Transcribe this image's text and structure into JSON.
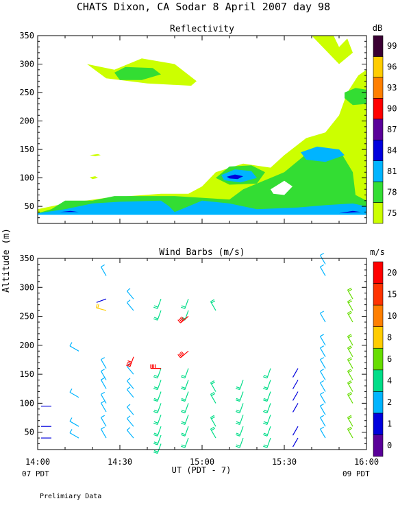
{
  "title": "CHATS Dixon, CA  Sodar    8 April 2007   day  98",
  "footer_note": "Prelimiary Data",
  "shared": {
    "ylabel": "Altitude (m)",
    "xlabel": "UT  (PDT - 7)",
    "x_ticks": [
      "14:00",
      "14:30",
      "15:00",
      "15:30",
      "16:00"
    ],
    "x_sub_left": "07 PDT",
    "x_sub_right": "09 PDT",
    "y_ticks": [
      "50",
      "100",
      "150",
      "200",
      "250",
      "300",
      "350"
    ]
  },
  "chart_data": [
    {
      "type": "heatmap",
      "title": "Reflectivity",
      "xlim": [
        "14:00",
        "16:00"
      ],
      "ylim": [
        20,
        350
      ],
      "colorbar_unit": "dB",
      "colorbar_ticks": [
        "75",
        "78",
        "81",
        "84",
        "87",
        "90",
        "93",
        "96",
        "99"
      ],
      "levels": [
        {
          "from": 75,
          "color": "#ccff00"
        },
        {
          "from": 78,
          "color": "#33dd33"
        },
        {
          "from": 81,
          "color": "#00b4ff"
        },
        {
          "from": 84,
          "color": "#0000dd"
        },
        {
          "from": 87,
          "color": "#5a0099"
        },
        {
          "from": 90,
          "color": "#ff0000"
        },
        {
          "from": 93,
          "color": "#ff7f00"
        },
        {
          "from": 96,
          "color": "#ffcc00"
        },
        {
          "from": 99,
          "color": "#3a0033"
        }
      ],
      "regions": [
        {
          "level": 75,
          "points": [
            [
              "14:00",
              45
            ],
            [
              "14:10",
              55
            ],
            [
              "14:25",
              65
            ],
            [
              "14:45",
              72
            ],
            [
              "14:55",
              72
            ],
            [
              "15:00",
              85
            ],
            [
              "15:05",
              110
            ],
            [
              "15:15",
              125
            ],
            [
              "15:25",
              118
            ],
            [
              "15:30",
              140
            ],
            [
              "15:38",
              170
            ],
            [
              "15:45",
              180
            ],
            [
              "15:50",
              210
            ],
            [
              "15:53",
              250
            ],
            [
              "15:57",
              280
            ],
            [
              "16:00",
              290
            ],
            [
              "16:00",
              35
            ],
            [
              "14:00",
              35
            ]
          ]
        },
        {
          "level": 75,
          "points": [
            [
              "14:18",
              300
            ],
            [
              "14:28",
              290
            ],
            [
              "14:38",
              310
            ],
            [
              "14:50",
              300
            ],
            [
              "14:58",
              270
            ],
            [
              "14:56",
              262
            ],
            [
              "14:40",
              266
            ],
            [
              "14:25",
              275
            ]
          ]
        },
        {
          "level": 75,
          "points": [
            [
              "15:40",
              350
            ],
            [
              "15:48",
              350
            ],
            [
              "15:50",
              330
            ],
            [
              "15:53",
              345
            ],
            [
              "15:55",
              320
            ],
            [
              "15:50",
              300
            ]
          ]
        },
        {
          "level": 75,
          "points": [
            [
              "14:19",
              140
            ],
            [
              "14:22",
              142
            ],
            [
              "14:23",
              140
            ],
            [
              "14:21",
              138
            ]
          ]
        },
        {
          "level": 75,
          "points": [
            [
              "14:19",
              101
            ],
            [
              "14:21",
              103
            ],
            [
              "14:22",
              100
            ],
            [
              "14:20",
              98
            ]
          ]
        },
        {
          "level": 78,
          "points": [
            [
              "14:00",
              38
            ],
            [
              "14:05",
              45
            ],
            [
              "14:10",
              60
            ],
            [
              "14:20",
              60
            ],
            [
              "14:28",
              68
            ],
            [
              "14:50",
              68
            ],
            [
              "15:00",
              65
            ],
            [
              "15:10",
              62
            ],
            [
              "15:15",
              80
            ],
            [
              "15:25",
              100
            ],
            [
              "15:30",
              110
            ],
            [
              "15:35",
              130
            ],
            [
              "15:40",
              150
            ],
            [
              "15:50",
              150
            ],
            [
              "15:55",
              110
            ],
            [
              "15:56",
              70
            ],
            [
              "16:00",
              60
            ],
            [
              "16:00",
              35
            ],
            [
              "14:00",
              35
            ]
          ]
        },
        {
          "level": 78,
          "points": [
            [
              "14:28",
              285
            ],
            [
              "14:32",
              295
            ],
            [
              "14:42",
              293
            ],
            [
              "14:45",
              282
            ],
            [
              "14:38",
              272
            ],
            [
              "14:30",
              272
            ]
          ]
        },
        {
          "level": 78,
          "points": [
            [
              "15:52",
              250
            ],
            [
              "15:56",
              258
            ],
            [
              "16:00",
              255
            ],
            [
              "16:00",
              230
            ],
            [
              "15:55",
              228
            ],
            [
              "15:52",
              240
            ]
          ]
        },
        {
          "level": 78,
          "points": [
            [
              "15:05",
              100
            ],
            [
              "15:10",
              120
            ],
            [
              "15:18",
              122
            ],
            [
              "15:23",
              110
            ],
            [
              "15:20",
              90
            ],
            [
              "15:10",
              88
            ]
          ]
        },
        {
          "level": 81,
          "points": [
            [
              "14:00",
              38
            ],
            [
              "14:10",
              45
            ],
            [
              "14:20",
              55
            ],
            [
              "14:30",
              58
            ],
            [
              "14:45",
              60
            ],
            [
              "14:48",
              50
            ],
            [
              "14:50",
              40
            ],
            [
              "14:55",
              50
            ],
            [
              "15:00",
              60
            ],
            [
              "15:10",
              55
            ],
            [
              "15:20",
              45
            ],
            [
              "15:35",
              48
            ],
            [
              "15:45",
              52
            ],
            [
              "15:55",
              55
            ],
            [
              "16:00",
              50
            ],
            [
              "16:00",
              35
            ],
            [
              "14:00",
              35
            ]
          ]
        },
        {
          "level": 81,
          "points": [
            [
              "15:07",
              105
            ],
            [
              "15:12",
              115
            ],
            [
              "15:18",
              112
            ],
            [
              "15:20",
              100
            ],
            [
              "15:14",
              92
            ],
            [
              "15:08",
              96
            ]
          ]
        },
        {
          "level": 81,
          "points": [
            [
              "15:36",
              145
            ],
            [
              "15:42",
              155
            ],
            [
              "15:50",
              150
            ],
            [
              "15:52",
              140
            ],
            [
              "15:45",
              128
            ],
            [
              "15:38",
              132
            ]
          ]
        },
        {
          "level": 84,
          "points": [
            [
              "15:09",
              102
            ],
            [
              "15:12",
              106
            ],
            [
              "15:15",
              103
            ],
            [
              "15:13",
              98
            ],
            [
              "15:10",
              99
            ]
          ]
        },
        {
          "level": 84,
          "points": [
            [
              "14:08",
              40
            ],
            [
              "14:12",
              42
            ],
            [
              "14:15",
              40
            ]
          ]
        },
        {
          "level": 84,
          "points": [
            [
              "15:50",
              38
            ],
            [
              "15:55",
              42
            ],
            [
              "15:58",
              40
            ]
          ]
        }
      ],
      "gaps": [
        {
          "points": [
            [
              "15:25",
              80
            ],
            [
              "15:30",
              95
            ],
            [
              "15:33",
              85
            ],
            [
              "15:30",
              70
            ],
            [
              "15:26",
              72
            ]
          ]
        }
      ]
    },
    {
      "type": "scatter",
      "title": "Wind Barbs (m/s)",
      "xlim": [
        "14:00",
        "16:00"
      ],
      "ylim": [
        20,
        350
      ],
      "colorbar_unit": "m/s",
      "colorbar_ticks": [
        "0",
        "1",
        "2",
        "4",
        "6",
        "8",
        "10",
        "15",
        "20"
      ],
      "speed_colors": [
        {
          "from": 0,
          "color": "#5a0099"
        },
        {
          "from": 1,
          "color": "#0000dd"
        },
        {
          "from": 2,
          "color": "#00b4ff"
        },
        {
          "from": 4,
          "color": "#00dd88"
        },
        {
          "from": 6,
          "color": "#66dd00"
        },
        {
          "from": 8,
          "color": "#ffcc00"
        },
        {
          "from": 10,
          "color": "#ff7f00"
        },
        {
          "from": 15,
          "color": "#ff3300"
        },
        {
          "from": 20,
          "color": "#ff0000"
        }
      ],
      "series": [
        {
          "time": "14:05",
          "heights": [
            40,
            60,
            95
          ],
          "speed": 1.5,
          "dir": 270
        },
        {
          "time": "14:15",
          "heights": [
            40,
            60,
            110,
            190
          ],
          "speed": 2.5,
          "dir": 300
        },
        {
          "time": "14:25",
          "heights": [
            40,
            60,
            85,
            100,
            125,
            140,
            160,
            320
          ],
          "speed": 3,
          "dir": 330
        },
        {
          "time": "14:25",
          "heights": [
            260
          ],
          "speed": 8.5,
          "dir": 285
        },
        {
          "time": "14:25",
          "heights": [
            280
          ],
          "speed": 1.5,
          "dir": 250
        },
        {
          "time": "14:35",
          "heights": [
            40,
            60,
            80,
            110,
            125,
            150,
            260,
            280
          ],
          "speed": 3,
          "dir": 320
        },
        {
          "time": "14:35",
          "heights": [
            180
          ],
          "speed": 21,
          "dir": 200
        },
        {
          "time": "14:45",
          "heights": [
            30,
            45,
            60,
            80,
            100,
            120,
            140,
            160,
            260,
            280
          ],
          "speed": 5,
          "dir": 200
        },
        {
          "time": "14:45",
          "heights": [
            160
          ],
          "speed": 21,
          "dir": 270
        },
        {
          "time": "14:55",
          "heights": [
            40,
            60,
            80,
            100,
            120,
            140,
            160,
            260,
            280
          ],
          "speed": 5.5,
          "dir": 200
        },
        {
          "time": "14:55",
          "heights": [
            250,
            190
          ],
          "speed": 21,
          "dir": 230
        },
        {
          "time": "15:05",
          "heights": [
            40,
            60,
            100,
            120,
            260
          ],
          "speed": 5,
          "dir": 330
        },
        {
          "time": "15:15",
          "heights": [
            40,
            60,
            80,
            100,
            120,
            140
          ],
          "speed": 5,
          "dir": 200
        },
        {
          "time": "15:25",
          "heights": [
            40,
            60,
            80,
            100,
            120,
            140,
            160
          ],
          "speed": 5,
          "dir": 200
        },
        {
          "time": "15:35",
          "heights": [
            40,
            60,
            100,
            120,
            140,
            160
          ],
          "speed": 1.5,
          "dir": 210
        },
        {
          "time": "15:45",
          "heights": [
            40,
            60,
            80,
            100,
            120,
            140,
            160,
            180,
            200,
            240,
            320,
            340
          ],
          "speed": 3,
          "dir": 330
        },
        {
          "time": "15:55",
          "heights": [
            40,
            60,
            100,
            120,
            140,
            160,
            180,
            200,
            240,
            260,
            280
          ],
          "speed": 6.5,
          "dir": 330
        }
      ]
    }
  ]
}
